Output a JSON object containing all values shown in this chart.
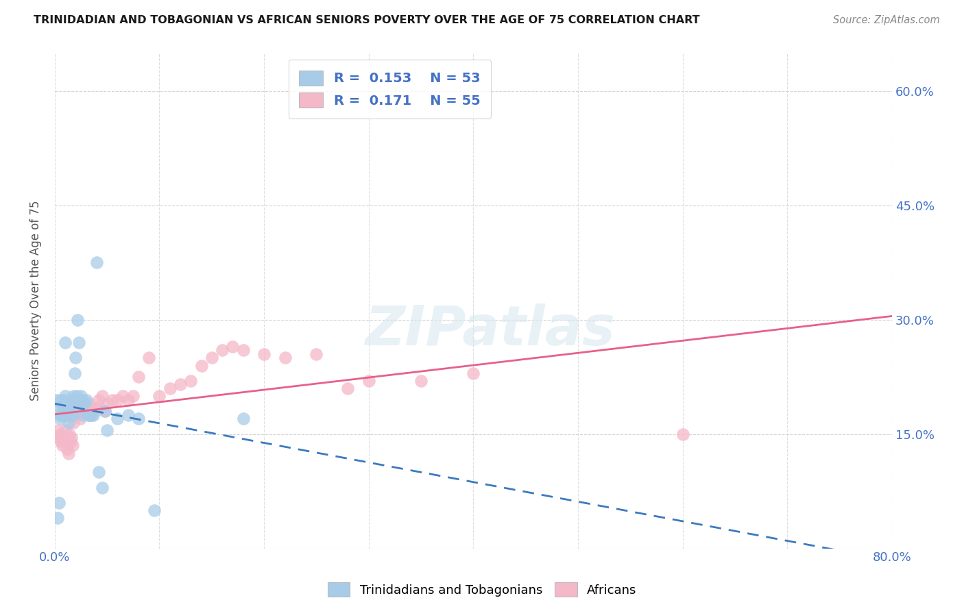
{
  "title": "TRINIDADIAN AND TOBAGONIAN VS AFRICAN SENIORS POVERTY OVER THE AGE OF 75 CORRELATION CHART",
  "source": "Source: ZipAtlas.com",
  "ylabel": "Seniors Poverty Over the Age of 75",
  "xlim": [
    0.0,
    0.8
  ],
  "ylim": [
    0.0,
    0.65
  ],
  "right_yticks": [
    0.15,
    0.3,
    0.45,
    0.6
  ],
  "right_ytick_labels": [
    "15.0%",
    "30.0%",
    "45.0%",
    "60.0%"
  ],
  "legend_R1": "0.153",
  "legend_N1": "53",
  "legend_R2": "0.171",
  "legend_N2": "55",
  "color_blue": "#a8cce8",
  "color_pink": "#f4b8c8",
  "line_color_blue": "#3a7abf",
  "line_color_pink": "#e8608a",
  "watermark": "ZIPatlas",
  "background_color": "#ffffff",
  "grid_color": "#d0d0d0",
  "trinidadian_x": [
    0.002,
    0.003,
    0.004,
    0.005,
    0.005,
    0.005,
    0.006,
    0.006,
    0.007,
    0.008,
    0.009,
    0.01,
    0.01,
    0.01,
    0.01,
    0.011,
    0.012,
    0.012,
    0.013,
    0.014,
    0.015,
    0.015,
    0.016,
    0.017,
    0.018,
    0.018,
    0.019,
    0.02,
    0.02,
    0.021,
    0.022,
    0.023,
    0.024,
    0.025,
    0.025,
    0.026,
    0.027,
    0.028,
    0.03,
    0.032,
    0.033,
    0.035,
    0.037,
    0.04,
    0.042,
    0.045,
    0.048,
    0.05,
    0.06,
    0.07,
    0.08,
    0.095,
    0.18
  ],
  "trinidadian_y": [
    0.195,
    0.04,
    0.06,
    0.17,
    0.175,
    0.185,
    0.175,
    0.195,
    0.185,
    0.18,
    0.175,
    0.195,
    0.2,
    0.27,
    0.175,
    0.18,
    0.185,
    0.175,
    0.165,
    0.185,
    0.19,
    0.175,
    0.19,
    0.175,
    0.195,
    0.2,
    0.23,
    0.195,
    0.25,
    0.2,
    0.3,
    0.27,
    0.19,
    0.195,
    0.2,
    0.195,
    0.175,
    0.19,
    0.195,
    0.175,
    0.175,
    0.175,
    0.175,
    0.375,
    0.1,
    0.08,
    0.18,
    0.155,
    0.17,
    0.175,
    0.17,
    0.05,
    0.17
  ],
  "african_x": [
    0.003,
    0.004,
    0.005,
    0.006,
    0.007,
    0.008,
    0.009,
    0.01,
    0.011,
    0.012,
    0.013,
    0.014,
    0.015,
    0.016,
    0.017,
    0.018,
    0.019,
    0.02,
    0.022,
    0.024,
    0.025,
    0.028,
    0.03,
    0.032,
    0.035,
    0.038,
    0.04,
    0.042,
    0.045,
    0.048,
    0.05,
    0.055,
    0.06,
    0.065,
    0.07,
    0.075,
    0.08,
    0.09,
    0.1,
    0.11,
    0.12,
    0.13,
    0.14,
    0.15,
    0.16,
    0.17,
    0.18,
    0.2,
    0.22,
    0.25,
    0.28,
    0.3,
    0.35,
    0.4,
    0.6
  ],
  "african_y": [
    0.155,
    0.145,
    0.15,
    0.14,
    0.135,
    0.175,
    0.185,
    0.155,
    0.14,
    0.13,
    0.125,
    0.15,
    0.14,
    0.145,
    0.135,
    0.165,
    0.175,
    0.175,
    0.18,
    0.17,
    0.185,
    0.18,
    0.185,
    0.19,
    0.175,
    0.18,
    0.185,
    0.195,
    0.2,
    0.18,
    0.19,
    0.195,
    0.195,
    0.2,
    0.195,
    0.2,
    0.225,
    0.25,
    0.2,
    0.21,
    0.215,
    0.22,
    0.24,
    0.25,
    0.26,
    0.265,
    0.26,
    0.255,
    0.25,
    0.255,
    0.21,
    0.22,
    0.22,
    0.23,
    0.15
  ]
}
